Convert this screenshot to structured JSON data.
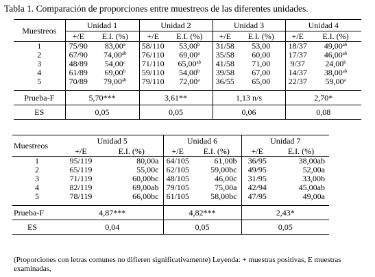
{
  "title": "Tabla 1. Comparación  de proporciones  entre  muestreos  de las  diferentes  unidades.",
  "table1": {
    "row_header": "Muestreos",
    "units": [
      "Unidad 1",
      "Unidad 2",
      "Unidad 3",
      "Unidad 4"
    ],
    "sub_e": "+/E",
    "sub_ei": "E.I. (%)",
    "rows": [
      {
        "m": "1",
        "c": [
          [
            "75/90",
            "83,00",
            "a"
          ],
          [
            "58/110",
            "53,00",
            "b"
          ],
          [
            "31/58",
            "53,00",
            ""
          ],
          [
            "18/37",
            "49,00",
            "ab"
          ]
        ]
      },
      {
        "m": "2",
        "c": [
          [
            "67/90",
            "74,00",
            "ab"
          ],
          [
            "76/110",
            "69,00",
            "a"
          ],
          [
            "35/58",
            "60,00",
            ""
          ],
          [
            "17/37",
            "46,00",
            "ab"
          ]
        ]
      },
      {
        "m": "3",
        "c": [
          [
            "48/89",
            "54,00",
            "c"
          ],
          [
            "71/110",
            "65,00",
            "ab"
          ],
          [
            "41/58",
            "71,00",
            ""
          ],
          [
            "9/37",
            "24,00",
            "b"
          ]
        ]
      },
      {
        "m": "4",
        "c": [
          [
            "61/89",
            "69,00",
            "b"
          ],
          [
            "59/110",
            "54,00",
            "b"
          ],
          [
            "39/58",
            "67,00",
            ""
          ],
          [
            "14/37",
            "38,00",
            "ab"
          ]
        ]
      },
      {
        "m": "5",
        "c": [
          [
            "70/89",
            "79,00",
            "ab"
          ],
          [
            "79/110",
            "72,00",
            "a"
          ],
          [
            "36/55",
            "65,00",
            ""
          ],
          [
            "22/37",
            "59,00",
            "a"
          ]
        ]
      }
    ],
    "prueba_label": "Prueba-F",
    "prueba": [
      "5,70***",
      "3,61**",
      "1,13 n/s",
      "2,70*"
    ],
    "es_label": "ES",
    "es": [
      "0,05",
      "0,05",
      "0,06",
      "0,08"
    ]
  },
  "table2": {
    "row_header": "Muestreos",
    "units": [
      "Unidad 5",
      "Unidad 6",
      "Unidad 7"
    ],
    "sub_e": "+/E",
    "sub_ei": "E.I. (%)",
    "rows": [
      {
        "m": "1",
        "c": [
          [
            "95/119",
            "80,00a"
          ],
          [
            "64/105",
            "61,00b"
          ],
          [
            "36/95",
            "38,00ab"
          ]
        ]
      },
      {
        "m": "2",
        "c": [
          [
            "65/119",
            "55,00c"
          ],
          [
            "62/105",
            "59,00bc"
          ],
          [
            "49/95",
            "52,00a"
          ]
        ]
      },
      {
        "m": "3",
        "c": [
          [
            "71/119",
            "60,00bc"
          ],
          [
            "48/105",
            "46,00c"
          ],
          [
            "31/95",
            "33,00b"
          ]
        ]
      },
      {
        "m": "4",
        "c": [
          [
            "82/119",
            "69,00ab"
          ],
          [
            "79/105",
            "75,00a"
          ],
          [
            "42/94",
            "45,00ab"
          ]
        ]
      },
      {
        "m": "5",
        "c": [
          [
            "78/119",
            "66,00bc"
          ],
          [
            "61/105",
            "58,00bc"
          ],
          [
            "47/95",
            "49,00a"
          ]
        ]
      }
    ],
    "prueba_label": "Prueba-F",
    "prueba": [
      "4,87***",
      "4,82***",
      "2,43*"
    ],
    "es_label": "ES",
    "es": [
      "0,04",
      "0,05",
      "0,05"
    ]
  },
  "footnote": "(Proporciones  con  letras  comunes  no  difieren  significativamente)   Leyenda: + muestras positivas, E muestras examinadas,"
}
